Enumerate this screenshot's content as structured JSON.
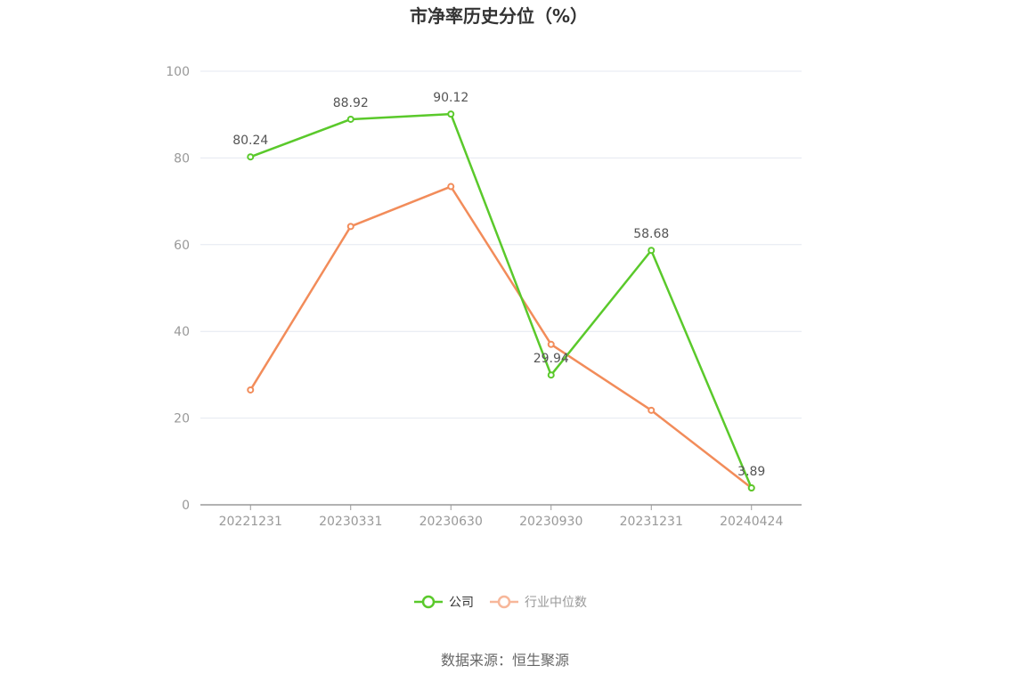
{
  "chart_data": {
    "type": "line",
    "title": "市净率历史分位（%）",
    "categories": [
      "20221231",
      "20230331",
      "20230630",
      "20230930",
      "20231231",
      "20240424"
    ],
    "ylim": [
      0,
      100
    ],
    "yticks": [
      0,
      20,
      40,
      60,
      80,
      100
    ],
    "grid": true,
    "legend_position": "bottom",
    "series": [
      {
        "name": "公司",
        "color": "#5ac92b",
        "values": [
          80.24,
          88.92,
          90.12,
          29.94,
          58.68,
          3.89
        ],
        "labels": [
          "80.24",
          "88.92",
          "90.12",
          "29.94",
          "58.68",
          "3.89"
        ]
      },
      {
        "name": "行业中位数",
        "color": "#f28c5a",
        "legend_color": "#f7b79a",
        "values": [
          26.5,
          64.2,
          73.4,
          37.0,
          21.8,
          3.9
        ]
      }
    ]
  },
  "footer": {
    "source": "数据来源：恒生聚源"
  }
}
